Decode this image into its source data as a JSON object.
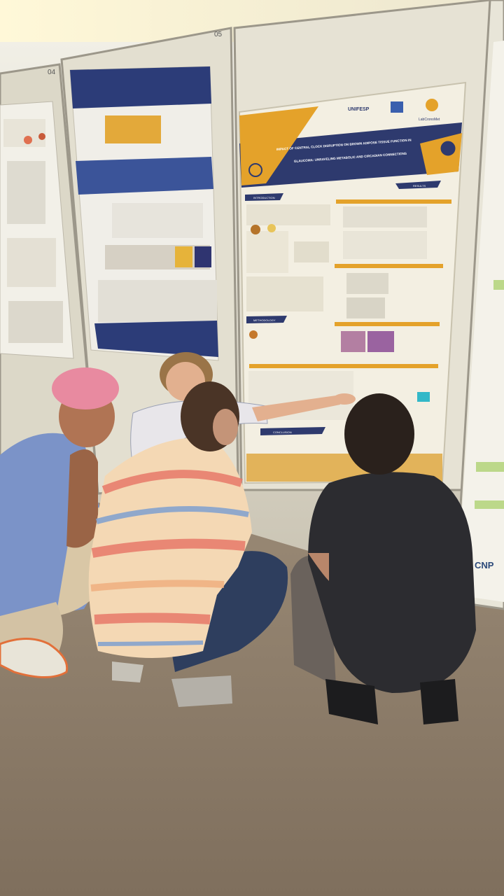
{
  "scene": {
    "description": "",
    "colors": {
      "wall": "#d6d2c2",
      "carpet": "#8c7c6a",
      "poster_bg": "#f3efe2",
      "poster_header": "#2e3a6e",
      "poster_accent": "#e4a22a",
      "hair_pink": "#e88aa0"
    }
  },
  "boards": {
    "left_number": "04",
    "center_number": "05"
  },
  "main_poster": {
    "logo_left": "UNIFESP",
    "logo_right": "LabCronoMet",
    "title_line1": "IMPACT OF CENTRAL CLOCK DISRUPTION ON BROWN ADIPOSE TISSUE FUNCTION IN",
    "title_line2": "GLAUCOMA: UNRAVELING METABOLIC AND CIRCADIAN CONNECTIONS",
    "section_intro": "INTRODUCTION",
    "section_results": "RESULTS",
    "section_methods": "METHODOLOGY",
    "section_conclusion": "CONCLUSION"
  },
  "right_poster": {
    "logo_text": "CNP"
  }
}
